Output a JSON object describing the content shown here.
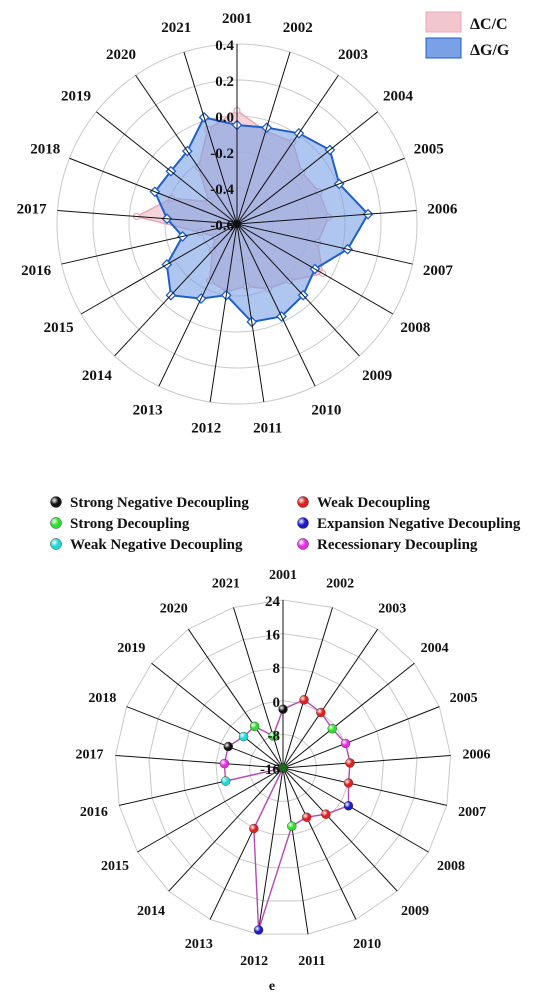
{
  "chart_data": [
    {
      "type": "radar",
      "categories": [
        "2001",
        "2002",
        "2003",
        "2004",
        "2005",
        "2006",
        "2007",
        "2008",
        "2009",
        "2010",
        "2011",
        "2012",
        "2013",
        "2014",
        "2015",
        "2016",
        "2017",
        "2018",
        "2019",
        "2020",
        "2021"
      ],
      "radial_ticks": [
        "-0.6",
        "-0.4",
        "-0.2",
        "0.0",
        "0.2",
        "0.4"
      ],
      "rlim": [
        -0.6,
        0.4
      ],
      "legend_position": "top-right",
      "grid": true,
      "series": [
        {
          "name": "ΔC/C",
          "color": "#e9a8b4",
          "fill": "#f2c6cf",
          "values": [
            0.03,
            -0.06,
            -0.05,
            -0.14,
            -0.11,
            -0.09,
            -0.14,
            -0.05,
            -0.17,
            -0.2,
            -0.25,
            -0.22,
            -0.25,
            -0.4,
            -0.46,
            -0.39,
            -0.04,
            -0.21,
            -0.4,
            -0.22,
            -0.05
          ]
        },
        {
          "name": "ΔG/G",
          "color": "#1f5fc8",
          "fill": "#7aa0e6",
          "values": [
            -0.05,
            -0.04,
            0.01,
            0.06,
            0.01,
            0.13,
            0.03,
            -0.1,
            -0.06,
            -0.03,
            -0.05,
            -0.2,
            -0.14,
            -0.06,
            -0.15,
            -0.29,
            -0.21,
            -0.11,
            -0.13,
            -0.11,
            0.02
          ]
        }
      ]
    },
    {
      "type": "radar",
      "categories": [
        "2001",
        "2002",
        "2003",
        "2004",
        "2005",
        "2006",
        "2007",
        "2008",
        "2009",
        "2010",
        "2011",
        "2012",
        "2013",
        "2014",
        "2015",
        "2016",
        "2017",
        "2018",
        "2019",
        "2020",
        "2021"
      ],
      "radial_ticks": [
        "-16",
        "-8",
        "0",
        "8",
        "16",
        "24"
      ],
      "rlim": [
        -16,
        24
      ],
      "grid": true,
      "line_color": "#b44ab4",
      "legend": [
        {
          "name": "Strong Negative Decoupling",
          "color": "#111111"
        },
        {
          "name": "Weak Decoupling",
          "color": "#e21f1f"
        },
        {
          "name": "Strong Decoupling",
          "color": "#2ee02e"
        },
        {
          "name": "Expansion Negative Decoupling",
          "color": "#1a1acc"
        },
        {
          "name": "Weak Negative Decoupling",
          "color": "#20d8d8"
        },
        {
          "name": "Recessionary Decoupling",
          "color": "#e62ee6"
        }
      ],
      "points": [
        {
          "year": "2001",
          "value": -2,
          "class": "Strong Negative Decoupling"
        },
        {
          "year": "2002",
          "value": 1,
          "class": "Weak Decoupling"
        },
        {
          "year": "2003",
          "value": 0,
          "class": "Weak Decoupling"
        },
        {
          "year": "2004",
          "value": -1,
          "class": "Strong Decoupling"
        },
        {
          "year": "2005",
          "value": 0,
          "class": "Recessionary Decoupling"
        },
        {
          "year": "2006",
          "value": 0,
          "class": "Weak Decoupling"
        },
        {
          "year": "2007",
          "value": 0,
          "class": "Weak Decoupling"
        },
        {
          "year": "2008",
          "value": 2,
          "class": "Expansion Negative Decoupling"
        },
        {
          "year": "2009",
          "value": -1,
          "class": "Weak Decoupling"
        },
        {
          "year": "2010",
          "value": -3,
          "class": "Weak Decoupling"
        },
        {
          "year": "2011",
          "value": -2,
          "class": "Strong Decoupling"
        },
        {
          "year": "2012",
          "value": 23,
          "class": "Expansion Negative Decoupling"
        },
        {
          "year": "2013",
          "value": 0,
          "class": "Weak Decoupling"
        },
        {
          "year": "2014",
          "value": -16,
          "class": "Strong Negative Decoupling"
        },
        {
          "year": "2015",
          "value": -16,
          "class": "Strong Negative Decoupling"
        },
        {
          "year": "2016",
          "value": -2,
          "class": "Weak Negative Decoupling"
        },
        {
          "year": "2017",
          "value": -2,
          "class": "Recessionary Decoupling"
        },
        {
          "year": "2018",
          "value": -2,
          "class": "Strong Negative Decoupling"
        },
        {
          "year": "2019",
          "value": -4,
          "class": "Weak Negative Decoupling"
        },
        {
          "year": "2020",
          "value": -4,
          "class": "Strong Decoupling"
        },
        {
          "year": "2021",
          "value": -8,
          "class": "Strong Decoupling"
        }
      ],
      "caption": "e"
    }
  ]
}
